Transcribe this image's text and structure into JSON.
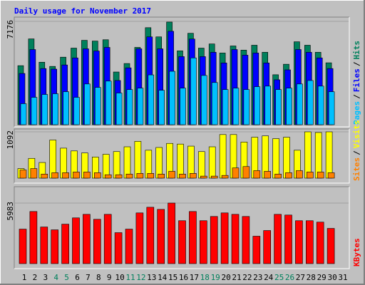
{
  "chart_data": [
    {
      "type": "bar",
      "title": "Daily usage for November 2017",
      "categories": [
        "1",
        "2",
        "3",
        "4",
        "5",
        "6",
        "7",
        "8",
        "9",
        "10",
        "11",
        "12",
        "13",
        "14",
        "15",
        "16",
        "17",
        "18",
        "19",
        "20",
        "21",
        "22",
        "23",
        "24",
        "25",
        "26",
        "27",
        "28",
        "29",
        "30",
        "31"
      ],
      "weekend_categories": [
        "4",
        "5",
        "11",
        "12",
        "18",
        "19",
        "25",
        "26"
      ],
      "weekend_color": "#00805c",
      "legend_separator": "/",
      "ylim": [
        0,
        7176
      ],
      "yticks": [
        7176
      ],
      "series": [
        {
          "name": "Hits",
          "color": "#00805c",
          "values": [
            4100,
            5960,
            4340,
            4050,
            4690,
            5320,
            5860,
            5810,
            5900,
            3660,
            4250,
            5370,
            6740,
            6100,
            7130,
            5130,
            6350,
            5320,
            5610,
            4980,
            5470,
            5180,
            5520,
            5030,
            3470,
            4200,
            5760,
            5520,
            5030,
            4300,
            null
          ]
        },
        {
          "name": "Files",
          "color": "#0000ff",
          "values": [
            3560,
            5220,
            3900,
            3860,
            4150,
            4640,
            5270,
            5120,
            5370,
            3070,
            3950,
            5270,
            6100,
            5270,
            6490,
            4730,
            5950,
            4730,
            5030,
            4290,
            5220,
            4830,
            4980,
            4290,
            3120,
            3810,
            5220,
            5030,
            4640,
            3900,
            null
          ]
        },
        {
          "name": "Pages",
          "color": "#00c0ff",
          "values": [
            1460,
            1900,
            2100,
            2150,
            2290,
            1900,
            2830,
            2590,
            3030,
            2200,
            2440,
            2540,
            3460,
            2390,
            3710,
            2540,
            4640,
            3420,
            2930,
            2440,
            2540,
            2440,
            2640,
            2680,
            2440,
            2540,
            2830,
            3070,
            2680,
            2290,
            null
          ]
        }
      ]
    },
    {
      "type": "bar",
      "ylim": [
        0,
        1092
      ],
      "yticks": [
        1092
      ],
      "series": [
        {
          "name": "Visits",
          "color": "#ffff00",
          "values": [
            225,
            466,
            369,
            899,
            707,
            642,
            594,
            498,
            562,
            626,
            739,
            867,
            658,
            723,
            819,
            803,
            755,
            626,
            739,
            1028,
            1028,
            851,
            964,
            996,
            931,
            964,
            658,
            1092,
            1076,
            1092,
            null
          ]
        },
        {
          "name": "Sites",
          "color": "#ff8000",
          "values": [
            193,
            225,
            96,
            128,
            128,
            145,
            145,
            128,
            80,
            80,
            96,
            112,
            112,
            96,
            161,
            96,
            112,
            48,
            48,
            64,
            241,
            273,
            177,
            161,
            96,
            128,
            177,
            145,
            145,
            128,
            null
          ]
        }
      ]
    },
    {
      "type": "bar",
      "ylim": [
        0,
        5983
      ],
      "yticks": [
        5983
      ],
      "series": [
        {
          "name": "KBytes",
          "color": "#ff0000",
          "values": [
            3410,
            5150,
            3620,
            3340,
            3900,
            4520,
            4870,
            4380,
            4870,
            3060,
            3410,
            5010,
            5570,
            5360,
            5983,
            4240,
            5150,
            4240,
            4660,
            5010,
            4870,
            4660,
            2710,
            3270,
            4870,
            4800,
            4240,
            4240,
            4100,
            3480,
            null
          ]
        }
      ]
    }
  ]
}
